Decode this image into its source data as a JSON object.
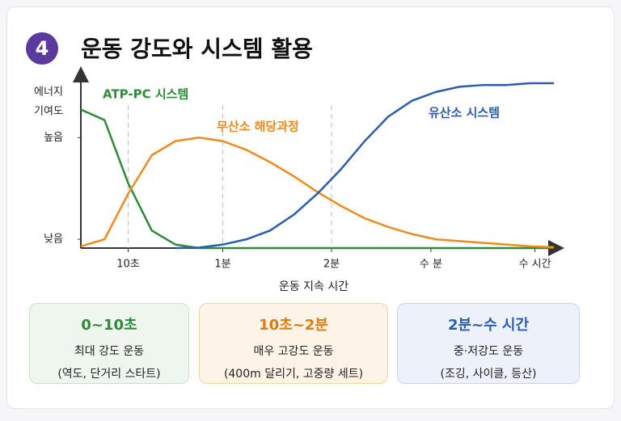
{
  "badge": "4",
  "chart_data": {
    "type": "line",
    "title": "운동 강도와 시스템 활용",
    "x_label": "운동 지속 시간",
    "y_label": [
      "에너지",
      "기여도"
    ],
    "x": [
      0,
      0.5,
      1,
      1.5,
      2,
      2.5,
      3,
      3.5,
      4,
      4.5,
      5,
      5.5,
      6,
      6.5,
      7,
      7.5,
      8,
      8.5,
      9,
      9.5,
      10
    ],
    "xlim": [
      0,
      10
    ],
    "xticks": [
      {
        "value": 1,
        "label": "10초"
      },
      {
        "value": 3,
        "label": "1분"
      },
      {
        "value": 5.3,
        "label": "2분"
      },
      {
        "value": 7.4,
        "label": "수 분"
      },
      {
        "value": 9.6,
        "label": "수 시간"
      }
    ],
    "ylim": [
      0,
      100
    ],
    "yticks": [
      {
        "value": 5,
        "label": "낮음"
      },
      {
        "value": 63,
        "label": "높음"
      }
    ],
    "series": [
      {
        "name": "ATP-PC 시스템",
        "color": "#2e8b3a",
        "values": [
          79,
          73,
          37,
          10,
          2,
          0,
          0,
          0,
          0,
          0,
          0,
          0,
          0,
          0,
          0,
          0,
          0,
          0,
          0,
          0,
          0
        ]
      },
      {
        "name": "무산소 해당과정",
        "color": "#f08a1c",
        "values": [
          1,
          5,
          31,
          53,
          61,
          63,
          61,
          56,
          49,
          41,
          32,
          24,
          17,
          12,
          8,
          5,
          4,
          3,
          2,
          1,
          0.5
        ]
      },
      {
        "name": "유산소 시스템",
        "color": "#2a5db0",
        "values": [
          null,
          null,
          null,
          null,
          0,
          0.3,
          2,
          5,
          10,
          19,
          31,
          45,
          61,
          75,
          84,
          89,
          92,
          93,
          93,
          94,
          94
        ]
      }
    ]
  },
  "cards": [
    {
      "title": "0~10초",
      "line1": "최대 강도 운동",
      "line2": "(역도, 단거리 스타트)"
    },
    {
      "title": "10초~2분",
      "line1": "매우 고강도 운동",
      "line2": "(400m 달리기, 고중량 세트)"
    },
    {
      "title": "2분~수 시간",
      "line1": "중·저강도 운동",
      "line2": "(조깅, 사이클, 등산)"
    }
  ]
}
